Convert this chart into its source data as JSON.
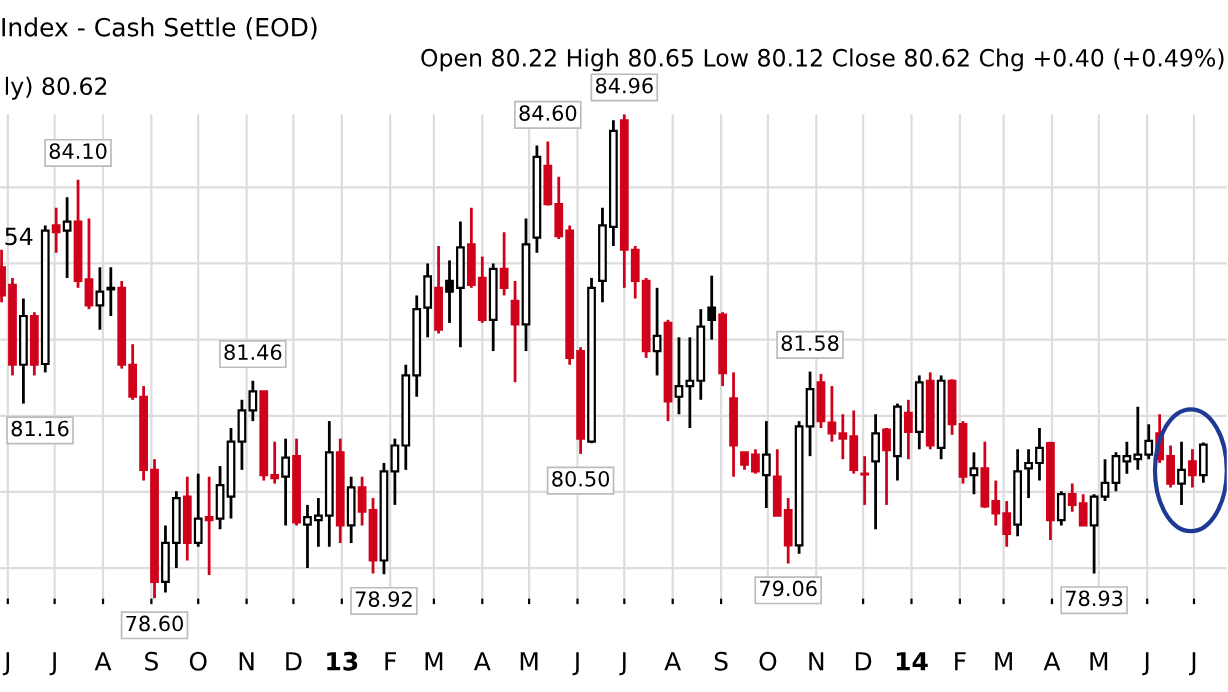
{
  "chart_data": {
    "type": "candlestick",
    "title": "Index - Cash Settle (EOD)",
    "subtitle": "Open 80.22 High 80.65 Low 80.12 Close 80.62 Chg +0.40 (+0.49%)",
    "x": [
      "2012-05-28",
      "2012-06-04",
      "2012-06-11",
      "2012-06-18",
      "2012-06-25",
      "2012-07-02",
      "2012-07-09",
      "2012-07-16",
      "2012-07-23",
      "2012-07-30",
      "2012-08-06",
      "2012-08-13",
      "2012-08-20",
      "2012-08-27",
      "2012-09-03",
      "2012-09-10",
      "2012-09-17",
      "2012-09-24",
      "2012-10-01",
      "2012-10-08",
      "2012-10-15",
      "2012-10-22",
      "2012-10-29",
      "2012-11-05",
      "2012-11-12",
      "2012-11-19",
      "2012-11-26",
      "2012-12-03",
      "2012-12-10",
      "2012-12-17",
      "2012-12-24",
      "2012-12-31",
      "2013-01-07",
      "2013-01-14",
      "2013-01-21",
      "2013-01-28",
      "2013-02-04",
      "2013-02-11",
      "2013-02-18",
      "2013-02-25",
      "2013-03-04",
      "2013-03-11",
      "2013-03-18",
      "2013-03-25",
      "2013-04-01",
      "2013-04-08",
      "2013-04-15",
      "2013-04-22",
      "2013-04-29",
      "2013-05-06",
      "2013-05-13",
      "2013-05-20",
      "2013-05-27",
      "2013-06-03",
      "2013-06-10",
      "2013-06-17",
      "2013-06-24",
      "2013-07-01",
      "2013-07-08",
      "2013-07-15",
      "2013-07-22",
      "2013-07-29",
      "2013-08-05",
      "2013-08-12",
      "2013-08-19",
      "2013-08-26",
      "2013-09-02",
      "2013-09-09",
      "2013-09-16",
      "2013-09-23",
      "2013-09-30",
      "2013-10-07",
      "2013-10-14",
      "2013-10-21",
      "2013-10-28",
      "2013-11-04",
      "2013-11-11",
      "2013-11-18",
      "2013-11-25",
      "2013-12-02",
      "2013-12-09",
      "2013-12-16",
      "2013-12-23",
      "2013-12-30",
      "2014-01-06",
      "2014-01-13",
      "2014-01-20",
      "2014-01-27",
      "2014-02-03",
      "2014-02-10",
      "2014-02-17",
      "2014-02-24",
      "2014-03-03",
      "2014-03-10",
      "2014-03-17",
      "2014-03-24",
      "2014-03-31",
      "2014-04-07",
      "2014-04-14",
      "2014-04-21",
      "2014-04-28",
      "2014-05-05",
      "2014-05-12",
      "2014-05-19",
      "2014-05-26",
      "2014-06-02",
      "2014-06-09",
      "2014-06-16",
      "2014-06-23",
      "2014-06-30",
      "2014-07-07"
    ],
    "ohlc": [
      [
        82.95,
        83.18,
        82.49,
        82.58
      ],
      [
        82.72,
        82.81,
        81.53,
        81.67
      ],
      [
        81.67,
        82.54,
        81.16,
        82.31
      ],
      [
        82.31,
        82.36,
        81.53,
        81.67
      ],
      [
        81.68,
        83.5,
        81.57,
        83.43
      ],
      [
        83.5,
        83.73,
        83.14,
        83.41
      ],
      [
        83.43,
        83.87,
        82.81,
        83.55
      ],
      [
        83.55,
        84.1,
        82.68,
        82.77
      ],
      [
        82.79,
        83.59,
        82.4,
        82.45
      ],
      [
        82.45,
        82.95,
        82.13,
        82.63
      ],
      [
        82.66,
        82.95,
        82.31,
        82.68
      ],
      [
        82.68,
        82.77,
        81.62,
        81.67
      ],
      [
        81.67,
        81.94,
        81.21,
        81.25
      ],
      [
        81.25,
        81.39,
        80.15,
        80.29
      ],
      [
        80.29,
        80.43,
        78.6,
        78.82
      ],
      [
        78.82,
        79.56,
        78.68,
        79.33
      ],
      [
        79.33,
        80.01,
        79.0,
        79.92
      ],
      [
        79.94,
        80.2,
        79.1,
        79.33
      ],
      [
        79.33,
        80.24,
        79.28,
        79.65
      ],
      [
        79.67,
        80.2,
        78.91,
        79.63
      ],
      [
        79.65,
        80.34,
        79.51,
        80.09
      ],
      [
        79.94,
        80.84,
        79.65,
        80.66
      ],
      [
        80.66,
        81.21,
        80.29,
        81.07
      ],
      [
        81.07,
        81.46,
        80.93,
        81.32
      ],
      [
        81.32,
        81.32,
        80.15,
        80.22
      ],
      [
        80.22,
        80.66,
        80.11,
        80.18
      ],
      [
        80.2,
        80.7,
        79.56,
        80.45
      ],
      [
        80.47,
        80.7,
        79.56,
        79.6
      ],
      [
        79.57,
        79.83,
        79.0,
        79.67
      ],
      [
        79.63,
        79.92,
        79.28,
        79.69
      ],
      [
        79.69,
        80.93,
        79.28,
        80.52
      ],
      [
        80.52,
        80.7,
        79.33,
        79.56
      ],
      [
        79.56,
        80.2,
        79.33,
        80.06
      ],
      [
        80.06,
        80.2,
        79.56,
        79.74
      ],
      [
        79.76,
        79.92,
        78.93,
        79.1
      ],
      [
        79.1,
        80.38,
        78.92,
        80.27
      ],
      [
        80.27,
        80.7,
        79.83,
        80.61
      ],
      [
        80.61,
        81.67,
        80.29,
        81.53
      ],
      [
        81.53,
        82.58,
        81.25,
        82.4
      ],
      [
        82.42,
        83.0,
        82.03,
        82.83
      ],
      [
        82.68,
        83.23,
        82.08,
        82.13
      ],
      [
        82.63,
        83.04,
        82.22,
        82.77
      ],
      [
        82.68,
        83.55,
        81.9,
        83.21
      ],
      [
        83.25,
        83.73,
        82.68,
        82.72
      ],
      [
        82.81,
        83.09,
        82.22,
        82.26
      ],
      [
        82.26,
        83.0,
        81.85,
        82.93
      ],
      [
        82.93,
        83.41,
        82.58,
        82.68
      ],
      [
        82.51,
        82.77,
        81.44,
        82.2
      ],
      [
        82.2,
        83.59,
        81.85,
        83.25
      ],
      [
        83.34,
        84.55,
        83.14,
        84.4
      ],
      [
        84.28,
        84.6,
        83.76,
        83.78
      ],
      [
        83.78,
        84.14,
        83.32,
        83.36
      ],
      [
        83.43,
        83.5,
        81.67,
        81.76
      ],
      [
        81.85,
        81.9,
        80.5,
        80.7
      ],
      [
        80.66,
        82.81,
        80.64,
        82.68
      ],
      [
        82.77,
        83.73,
        82.49,
        83.5
      ],
      [
        83.48,
        84.88,
        83.23,
        84.74
      ],
      [
        84.88,
        84.96,
        82.68,
        83.18
      ],
      [
        83.18,
        83.23,
        82.54,
        82.77
      ],
      [
        82.77,
        82.81,
        81.76,
        81.85
      ],
      [
        81.85,
        82.68,
        81.53,
        82.05
      ],
      [
        82.22,
        82.26,
        80.93,
        81.19
      ],
      [
        81.25,
        82.03,
        81.02,
        81.39
      ],
      [
        81.39,
        82.03,
        80.84,
        81.46
      ],
      [
        81.46,
        82.4,
        81.21,
        82.17
      ],
      [
        82.26,
        82.84,
        82.0,
        82.42
      ],
      [
        82.33,
        82.36,
        81.39,
        81.56
      ],
      [
        81.23,
        81.57,
        80.2,
        80.61
      ],
      [
        80.52,
        80.52,
        80.29,
        80.36
      ],
      [
        80.49,
        80.56,
        80.24,
        80.27
      ],
      [
        80.22,
        80.93,
        79.79,
        80.49
      ],
      [
        80.2,
        80.56,
        79.69,
        79.69
      ],
      [
        79.76,
        79.92,
        79.06,
        79.3
      ],
      [
        79.3,
        80.93,
        79.19,
        80.86
      ],
      [
        80.86,
        81.58,
        80.47,
        81.35
      ],
      [
        81.44,
        81.55,
        80.84,
        80.93
      ],
      [
        80.91,
        81.39,
        80.66,
        80.77
      ],
      [
        80.77,
        81.02,
        80.43,
        80.7
      ],
      [
        80.73,
        81.07,
        80.24,
        80.29
      ],
      [
        80.24,
        80.47,
        79.83,
        80.23
      ],
      [
        80.4,
        81.02,
        79.51,
        80.77
      ],
      [
        80.82,
        80.84,
        79.83,
        80.55
      ],
      [
        80.47,
        81.16,
        80.15,
        81.12
      ],
      [
        81.04,
        81.21,
        80.43,
        80.79
      ],
      [
        80.79,
        81.53,
        80.56,
        81.44
      ],
      [
        81.46,
        81.57,
        80.56,
        80.61
      ],
      [
        80.58,
        81.53,
        80.43,
        81.46
      ],
      [
        81.46,
        81.48,
        80.75,
        80.89
      ],
      [
        80.89,
        80.93,
        80.11,
        80.2
      ],
      [
        80.22,
        80.52,
        79.97,
        80.31
      ],
      [
        80.31,
        80.66,
        79.79,
        79.81
      ],
      [
        79.88,
        80.15,
        79.56,
        79.72
      ],
      [
        79.72,
        79.88,
        79.28,
        79.45
      ],
      [
        79.57,
        80.56,
        79.42,
        80.27
      ],
      [
        80.31,
        80.56,
        79.92,
        80.38
      ],
      [
        80.38,
        80.84,
        80.15,
        80.58
      ],
      [
        80.64,
        80.66,
        79.37,
        79.63
      ],
      [
        79.63,
        80.01,
        79.56,
        79.97
      ],
      [
        79.97,
        80.11,
        79.74,
        79.83
      ],
      [
        79.85,
        79.97,
        79.56,
        79.56
      ],
      [
        79.56,
        79.97,
        78.93,
        79.94
      ],
      [
        79.94,
        80.43,
        79.88,
        80.12
      ],
      [
        80.12,
        80.52,
        80.01,
        80.47
      ],
      [
        80.4,
        80.66,
        80.24,
        80.47
      ],
      [
        80.43,
        81.12,
        80.29,
        80.49
      ],
      [
        80.49,
        80.89,
        80.43,
        80.67
      ],
      [
        80.77,
        81.02,
        80.38,
        80.43
      ],
      [
        80.47,
        80.61,
        80.06,
        80.11
      ],
      [
        80.11,
        80.66,
        79.83,
        80.29
      ],
      [
        80.4,
        80.56,
        80.06,
        80.22
      ],
      [
        80.22,
        80.65,
        80.12,
        80.62
      ]
    ],
    "colors": [
      "#d0021b",
      "#d0021b",
      "#ffffff",
      "#d0021b",
      "#ffffff",
      "#d0021b",
      "#ffffff",
      "#d0021b",
      "#d0021b",
      "#ffffff",
      "#000000",
      "#d0021b",
      "#d0021b",
      "#d0021b",
      "#d0021b",
      "#ffffff",
      "#ffffff",
      "#d0021b",
      "#ffffff",
      "#d0021b",
      "#ffffff",
      "#ffffff",
      "#ffffff",
      "#ffffff",
      "#d0021b",
      "#d0021b",
      "#ffffff",
      "#d0021b",
      "#ffffff",
      "#ffffff",
      "#ffffff",
      "#d0021b",
      "#ffffff",
      "#d0021b",
      "#d0021b",
      "#ffffff",
      "#ffffff",
      "#ffffff",
      "#ffffff",
      "#ffffff",
      "#d0021b",
      "#000000",
      "#ffffff",
      "#d0021b",
      "#d0021b",
      "#ffffff",
      "#d0021b",
      "#d0021b",
      "#ffffff",
      "#ffffff",
      "#d0021b",
      "#d0021b",
      "#d0021b",
      "#d0021b",
      "#ffffff",
      "#ffffff",
      "#ffffff",
      "#d0021b",
      "#d0021b",
      "#d0021b",
      "#ffffff",
      "#d0021b",
      "#ffffff",
      "#ffffff",
      "#ffffff",
      "#000000",
      "#d0021b",
      "#d0021b",
      "#d0021b",
      "#d0021b",
      "#ffffff",
      "#d0021b",
      "#d0021b",
      "#ffffff",
      "#ffffff",
      "#d0021b",
      "#d0021b",
      "#d0021b",
      "#d0021b",
      "#d0021b",
      "#ffffff",
      "#d0021b",
      "#ffffff",
      "#d0021b",
      "#ffffff",
      "#d0021b",
      "#ffffff",
      "#d0021b",
      "#d0021b",
      "#ffffff",
      "#d0021b",
      "#d0021b",
      "#d0021b",
      "#ffffff",
      "#ffffff",
      "#ffffff",
      "#d0021b",
      "#ffffff",
      "#d0021b",
      "#d0021b",
      "#ffffff",
      "#ffffff",
      "#ffffff",
      "#ffffff",
      "#ffffff",
      "#ffffff",
      "#d0021b",
      "#d0021b",
      "#ffffff",
      "#d0021b",
      "#ffffff"
    ],
    "xlim": [
      "2012-05-27",
      "2014-07-22"
    ],
    "xticks": [
      {
        "value": "2012-06-01",
        "label": "J"
      },
      {
        "value": "2012-07-01",
        "label": "J"
      },
      {
        "value": "2012-08-01",
        "label": "A"
      },
      {
        "value": "2012-09-01",
        "label": "S"
      },
      {
        "value": "2012-10-01",
        "label": "O"
      },
      {
        "value": "2012-11-01",
        "label": "N"
      },
      {
        "value": "2012-12-01",
        "label": "D"
      },
      {
        "value": "2013-01-01",
        "label": "13"
      },
      {
        "value": "2013-02-01",
        "label": "F"
      },
      {
        "value": "2013-03-01",
        "label": "M"
      },
      {
        "value": "2013-04-01",
        "label": "A"
      },
      {
        "value": "2013-05-01",
        "label": "M"
      },
      {
        "value": "2013-06-01",
        "label": "J"
      },
      {
        "value": "2013-07-01",
        "label": "J"
      },
      {
        "value": "2013-08-01",
        "label": "A"
      },
      {
        "value": "2013-09-01",
        "label": "S"
      },
      {
        "value": "2013-10-01",
        "label": "O"
      },
      {
        "value": "2013-11-01",
        "label": "N"
      },
      {
        "value": "2013-12-01",
        "label": "D"
      },
      {
        "value": "2014-01-01",
        "label": "14"
      },
      {
        "value": "2014-02-01",
        "label": "F"
      },
      {
        "value": "2014-03-01",
        "label": "M"
      },
      {
        "value": "2014-04-01",
        "label": "A"
      },
      {
        "value": "2014-05-01",
        "label": "M"
      },
      {
        "value": "2014-06-01",
        "label": "J"
      },
      {
        "value": "2014-07-01",
        "label": "J"
      }
    ],
    "tick_labels": "x",
    "grid": true,
    "annotations": [
      "ly) 80.62",
      "54",
      {
        "text": "81.16",
        "x": "2012-06-11",
        "y": 81.16
      },
      {
        "text": "84.10",
        "x": "2012-07-16",
        "y": 84.1
      },
      {
        "text": "78.60",
        "x": "2012-09-03",
        "y": 78.6
      },
      {
        "text": "81.46",
        "x": "2012-11-05",
        "y": 81.46
      },
      {
        "text": "78.92",
        "x": "2013-01-28",
        "y": 78.92
      },
      {
        "text": "84.60",
        "x": "2013-05-13",
        "y": 84.6
      },
      {
        "text": "80.50",
        "x": "2013-06-03",
        "y": 80.5
      },
      {
        "text": "84.96",
        "x": "2013-07-01",
        "y": 84.96
      },
      {
        "text": "79.06",
        "x": "2013-10-14",
        "y": 79.06
      },
      {
        "text": "81.58",
        "x": "2013-10-28",
        "y": 81.58
      },
      {
        "text": "78.93",
        "x": "2014-04-28",
        "y": 78.93
      }
    ]
  }
}
